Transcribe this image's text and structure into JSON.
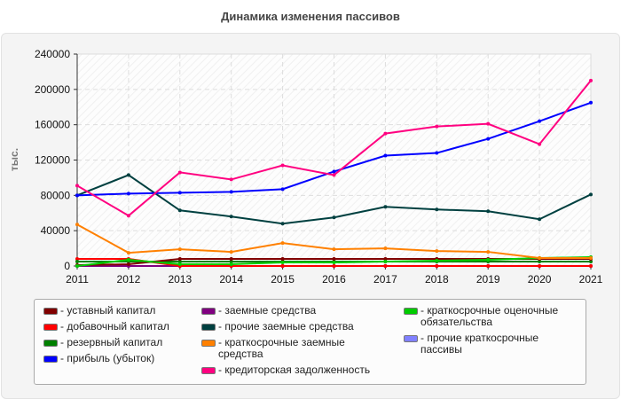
{
  "chart_data": {
    "type": "line",
    "title": "Динамика изменения пассивов",
    "ylabel": "тыс.",
    "xlabel": "",
    "x": [
      "2011",
      "2012",
      "2013",
      "2014",
      "2015",
      "2016",
      "2017",
      "2018",
      "2019",
      "2020",
      "2021"
    ],
    "ylim": [
      0,
      240000
    ],
    "yticks": [
      "0",
      "40000",
      "80000",
      "120000",
      "160000",
      "200000",
      "240000"
    ],
    "grid": true,
    "legend_position": "bottom",
    "series": [
      {
        "name": "- уставный капитал",
        "color": "#800000",
        "values": [
          1000,
          2000,
          8000,
          8000,
          8000,
          8000,
          8000,
          8000,
          8000,
          8000,
          8000
        ]
      },
      {
        "name": "- добавочный капитал",
        "color": "#ff0000",
        "values": [
          8000,
          8000,
          0,
          0,
          0,
          0,
          0,
          0,
          0,
          0,
          0
        ]
      },
      {
        "name": "- резервный капитал",
        "color": "#008000",
        "values": [
          5000,
          5000,
          5000,
          5000,
          5000,
          5000,
          5000,
          5000,
          5000,
          5000,
          5000
        ]
      },
      {
        "name": "- прибыль (убыток)",
        "color": "#0000ff",
        "values": [
          80000,
          82000,
          83000,
          84000,
          87000,
          107000,
          125000,
          128000,
          144000,
          164000,
          185000
        ]
      },
      {
        "name": "- заемные средства",
        "color": "#800080",
        "values": [
          0,
          0,
          0,
          0,
          0,
          0,
          0,
          0,
          0,
          0,
          0
        ]
      },
      {
        "name": "- прочие заемные средства",
        "color": "#004040",
        "values": [
          80000,
          103000,
          63000,
          56000,
          48000,
          55000,
          67000,
          64000,
          62000,
          53000,
          81000
        ]
      },
      {
        "name": "- краткосрочные заемные\nсредства",
        "color": "#ff8000",
        "values": [
          47000,
          15000,
          19000,
          16000,
          26000,
          19000,
          20000,
          17000,
          16000,
          9000,
          9000
        ]
      },
      {
        "name": "- кредиторская задолженность",
        "color": "#ff0080",
        "values": [
          91000,
          57000,
          106000,
          98000,
          114000,
          103000,
          150000,
          158000,
          161000,
          138000,
          210000
        ]
      },
      {
        "name": "- краткосрочные оценочные\nобязательства",
        "color": "#00cc00",
        "values": [
          0,
          7000,
          2000,
          2000,
          4000,
          4000,
          5000,
          6000,
          7000,
          9000,
          10000
        ]
      },
      {
        "name": "- прочие краткосрочные\nпассивы",
        "color": "#8080ff",
        "values": [
          0,
          0,
          0,
          0,
          0,
          0,
          0,
          0,
          0,
          0,
          0
        ]
      }
    ]
  }
}
